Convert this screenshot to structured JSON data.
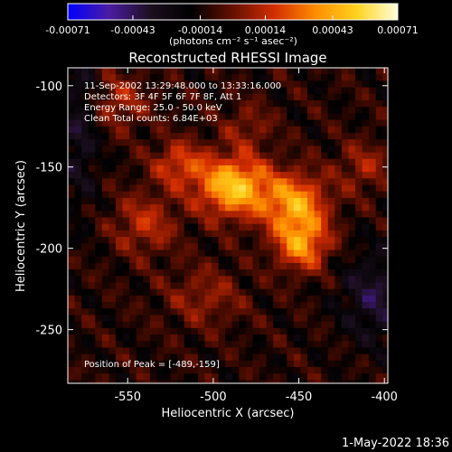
{
  "chart_data": {
    "type": "heatmap",
    "title": "Reconstructed RHESSI Image",
    "xlabel": "Heliocentric X (arcsec)",
    "ylabel": "Heliocentric Y (arcsec)",
    "xlim": [
      -585,
      -398
    ],
    "ylim": [
      -283,
      -89
    ],
    "x_ticks": [
      "-550",
      "-500",
      "-450",
      "-400"
    ],
    "x_tick_values": [
      -550,
      -500,
      -450,
      -400
    ],
    "y_ticks": [
      "-100",
      "-150",
      "-200",
      "-250"
    ],
    "y_tick_values": [
      -100,
      -150,
      -200,
      -250
    ],
    "colorbar": {
      "unit_label": "(photons cm⁻² s⁻¹ asec⁻²)",
      "range": [
        -0.00071,
        0.00071
      ],
      "tick_labels": [
        "-0.00071",
        "-0.00043",
        "-0.00014",
        "0.00014",
        "0.00043",
        "0.00071"
      ],
      "tick_values": [
        -0.00071,
        -0.00043,
        -0.00014,
        0.00014,
        0.00043,
        0.00071
      ],
      "colors": [
        "#0000ff",
        "#4b1ca3",
        "#1c0f1f",
        "#000000",
        "#641000",
        "#d22d00",
        "#ff8c00",
        "#ffd21e",
        "#ffffdc"
      ]
    },
    "annotations": [
      "11-Sep-2002 13:29:48.000 to 13:33:16.000",
      "Detectors: 3F 4F 5F 6F 7F 8F, Att 1",
      "Energy Range: 25.0 - 50.0 keV",
      "Clean     Total counts: 6.84E+03"
    ],
    "peak_label": "Position of Peak = [-489,-159]",
    "peak": [
      -489,
      -159
    ],
    "sources": [
      {
        "x": -488,
        "y": -162,
        "sx": 15,
        "sy": 13,
        "amp": 0.00062
      },
      {
        "x": -452,
        "y": -173,
        "sx": 13,
        "sy": 13,
        "amp": 0.0005
      },
      {
        "x": -448,
        "y": -198,
        "sx": 11,
        "sy": 11,
        "amp": 0.00045
      },
      {
        "x": -520,
        "y": -148,
        "sx": 11,
        "sy": 10,
        "amp": 0.0003
      },
      {
        "x": -540,
        "y": -185,
        "sx": 13,
        "sy": 13,
        "amp": 0.00025
      },
      {
        "x": -555,
        "y": -110,
        "sx": 12,
        "sy": 12,
        "amp": 0.00022
      },
      {
        "x": -412,
        "y": -150,
        "sx": 11,
        "sy": 11,
        "amp": 0.0002
      },
      {
        "x": -505,
        "y": -230,
        "sx": 16,
        "sy": 13,
        "amp": 0.00018
      },
      {
        "x": -480,
        "y": -125,
        "sx": 10,
        "sy": 10,
        "amp": 0.00016
      }
    ],
    "grid": false
  },
  "footer": {
    "timestamp": "1-May-2022 18:36"
  }
}
